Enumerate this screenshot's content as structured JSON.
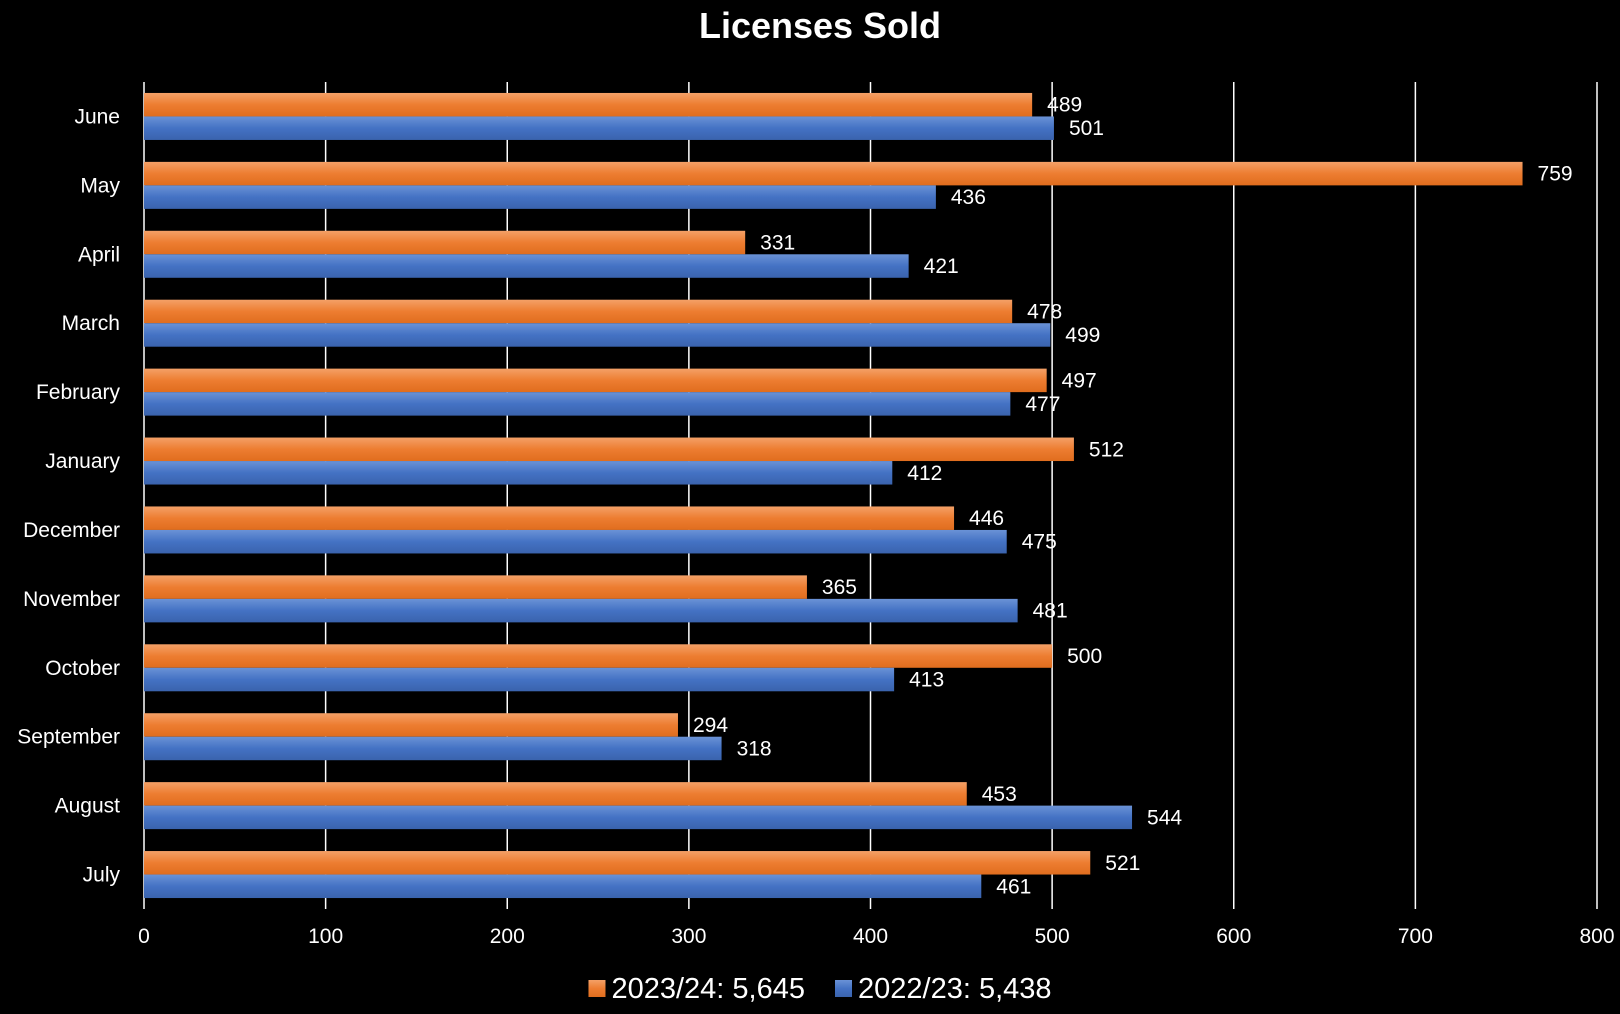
{
  "chart_data": {
    "type": "bar",
    "orientation": "horizontal",
    "title": "Licenses Sold",
    "xlabel": "",
    "ylabel": "",
    "categories": [
      "July",
      "August",
      "September",
      "October",
      "November",
      "December",
      "January",
      "February",
      "March",
      "April",
      "May",
      "June"
    ],
    "series": [
      {
        "name": "2023/24: 5,645",
        "color": "#ed7d31",
        "values": [
          521,
          453,
          294,
          500,
          365,
          446,
          512,
          497,
          478,
          331,
          759,
          489
        ]
      },
      {
        "name": "2022/23: 5,438",
        "color": "#4472c4",
        "values": [
          461,
          544,
          318,
          413,
          481,
          475,
          412,
          477,
          499,
          421,
          436,
          501
        ]
      }
    ],
    "xlim": [
      0,
      800
    ],
    "xticks": [
      0,
      100,
      200,
      300,
      400,
      500,
      600,
      700,
      800
    ],
    "grid": true,
    "data_labels": true,
    "legend_position": "bottom",
    "background": "#000000",
    "text_color": "#ffffff",
    "gridline_color": "#ffffff"
  }
}
